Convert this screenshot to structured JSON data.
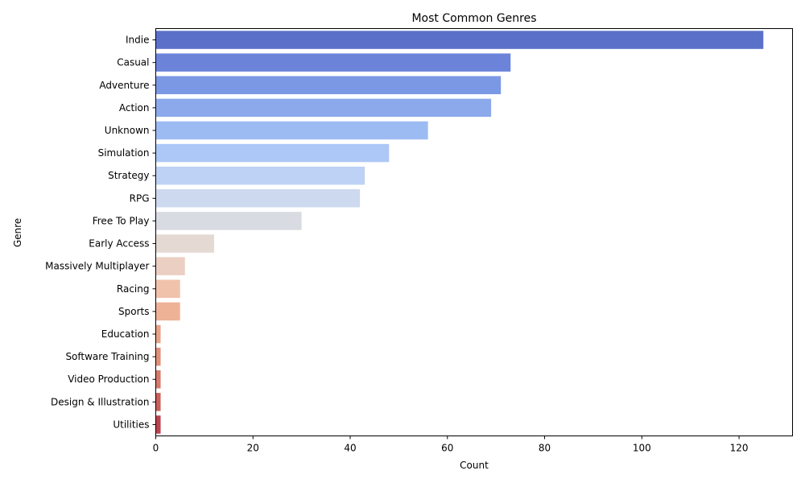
{
  "chart_data": {
    "type": "bar",
    "orientation": "horizontal",
    "title": "Most Common Genres",
    "xlabel": "Count",
    "ylabel": "Genre",
    "xlim": [
      0,
      131
    ],
    "xticks": [
      0,
      20,
      40,
      60,
      80,
      100,
      120
    ],
    "grid": false,
    "categories": [
      "Indie",
      "Casual",
      "Adventure",
      "Action",
      "Unknown",
      "Simulation",
      "Strategy",
      "RPG",
      "Free To Play",
      "Early Access",
      "Massively Multiplayer",
      "Racing",
      "Sports",
      "Education",
      "Software Training",
      "Video Production",
      "Design & Illustration",
      "Utilities"
    ],
    "values": [
      125,
      73,
      71,
      69,
      56,
      48,
      43,
      42,
      30,
      12,
      6,
      5,
      5,
      1,
      1,
      1,
      1,
      1
    ],
    "colors": [
      "#5b71c9",
      "#6b84da",
      "#7b98e4",
      "#8ca9ec",
      "#9dbbf3",
      "#adc8f6",
      "#bed2f6",
      "#cdd9ee",
      "#d9dbe2",
      "#e4d9d3",
      "#ebcfc3",
      "#f0c2ac",
      "#eeb297",
      "#e8a288",
      "#e08f79",
      "#d67a6a",
      "#c9605a",
      "#b8444e"
    ]
  }
}
